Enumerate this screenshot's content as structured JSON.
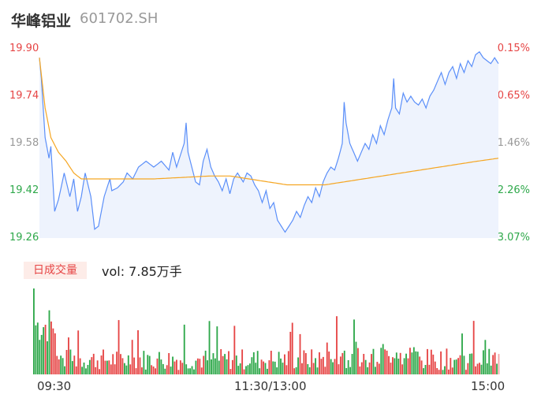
{
  "header": {
    "stock_name": "华峰铝业",
    "stock_code": "601702.SH"
  },
  "volume_panel": {
    "tag_label": "日成交量",
    "vol_label": "vol: 7.85万手"
  },
  "colors": {
    "up": "#e64545",
    "down": "#2ea84a",
    "flat": "#999999",
    "price_line": "#5b8ff9",
    "avg_line": "#f5a623",
    "area_fill": "#eef3fd"
  },
  "chart_data": [
    {
      "type": "line",
      "description_scope": "intraday price",
      "y_ticks": [
        "19.90",
        "19.74",
        "19.58",
        "19.42",
        "19.26"
      ],
      "right_ticks": [
        "0.15%",
        "-0.65%",
        "-1.46%",
        "-2.26%",
        "-3.07%"
      ],
      "ylim": [
        19.26,
        19.9
      ],
      "x_ticks": [
        "09:30",
        "11:30/13:00",
        "15:00"
      ],
      "n_points": 242,
      "price_keypoints": [
        [
          0,
          19.87
        ],
        [
          1,
          19.8
        ],
        [
          3,
          19.6
        ],
        [
          5,
          19.53
        ],
        [
          6,
          19.57
        ],
        [
          8,
          19.35
        ],
        [
          10,
          19.39
        ],
        [
          13,
          19.48
        ],
        [
          16,
          19.4
        ],
        [
          18,
          19.46
        ],
        [
          20,
          19.35
        ],
        [
          22,
          19.4
        ],
        [
          24,
          19.48
        ],
        [
          27,
          19.4
        ],
        [
          29,
          19.29
        ],
        [
          31,
          19.3
        ],
        [
          34,
          19.4
        ],
        [
          37,
          19.46
        ],
        [
          38,
          19.42
        ],
        [
          41,
          19.43
        ],
        [
          44,
          19.45
        ],
        [
          46,
          19.48
        ],
        [
          49,
          19.46
        ],
        [
          52,
          19.5
        ],
        [
          56,
          19.52
        ],
        [
          60,
          19.5
        ],
        [
          64,
          19.52
        ],
        [
          68,
          19.49
        ],
        [
          70,
          19.55
        ],
        [
          72,
          19.5
        ],
        [
          74,
          19.54
        ],
        [
          76,
          19.58
        ],
        [
          77,
          19.65
        ],
        [
          78,
          19.55
        ],
        [
          80,
          19.5
        ],
        [
          82,
          19.45
        ],
        [
          84,
          19.44
        ],
        [
          86,
          19.52
        ],
        [
          88,
          19.56
        ],
        [
          90,
          19.5
        ],
        [
          92,
          19.47
        ],
        [
          94,
          19.45
        ],
        [
          96,
          19.42
        ],
        [
          98,
          19.46
        ],
        [
          100,
          19.41
        ],
        [
          102,
          19.46
        ],
        [
          104,
          19.48
        ],
        [
          107,
          19.45
        ],
        [
          109,
          19.48
        ],
        [
          111,
          19.47
        ],
        [
          113,
          19.44
        ],
        [
          115,
          19.42
        ],
        [
          117,
          19.38
        ],
        [
          119,
          19.42
        ],
        [
          121,
          19.36
        ],
        [
          123,
          19.38
        ],
        [
          125,
          19.32
        ],
        [
          127,
          19.3
        ],
        [
          129,
          19.28
        ],
        [
          131,
          19.3
        ],
        [
          133,
          19.32
        ],
        [
          135,
          19.35
        ],
        [
          137,
          19.33
        ],
        [
          139,
          19.37
        ],
        [
          141,
          19.4
        ],
        [
          143,
          19.38
        ],
        [
          145,
          19.43
        ],
        [
          147,
          19.4
        ],
        [
          149,
          19.45
        ],
        [
          151,
          19.48
        ],
        [
          153,
          19.5
        ],
        [
          155,
          19.49
        ],
        [
          157,
          19.53
        ],
        [
          159,
          19.58
        ],
        [
          160,
          19.72
        ],
        [
          161,
          19.65
        ],
        [
          163,
          19.58
        ],
        [
          165,
          19.55
        ],
        [
          167,
          19.52
        ],
        [
          169,
          19.55
        ],
        [
          171,
          19.58
        ],
        [
          173,
          19.56
        ],
        [
          175,
          19.61
        ],
        [
          177,
          19.58
        ],
        [
          179,
          19.64
        ],
        [
          181,
          19.61
        ],
        [
          183,
          19.66
        ],
        [
          185,
          19.7
        ],
        [
          186,
          19.8
        ],
        [
          187,
          19.7
        ],
        [
          189,
          19.68
        ],
        [
          191,
          19.75
        ],
        [
          193,
          19.72
        ],
        [
          195,
          19.74
        ],
        [
          197,
          19.72
        ],
        [
          199,
          19.71
        ],
        [
          201,
          19.73
        ],
        [
          203,
          19.7
        ],
        [
          205,
          19.74
        ],
        [
          207,
          19.76
        ],
        [
          209,
          19.79
        ],
        [
          211,
          19.82
        ],
        [
          213,
          19.78
        ],
        [
          215,
          19.82
        ],
        [
          217,
          19.84
        ],
        [
          219,
          19.8
        ],
        [
          221,
          19.85
        ],
        [
          223,
          19.82
        ],
        [
          225,
          19.86
        ],
        [
          227,
          19.84
        ],
        [
          229,
          19.88
        ],
        [
          231,
          19.89
        ],
        [
          233,
          19.87
        ],
        [
          235,
          19.86
        ],
        [
          237,
          19.85
        ],
        [
          239,
          19.87
        ],
        [
          241,
          19.85
        ]
      ],
      "avg_keypoints": [
        [
          0,
          19.87
        ],
        [
          3,
          19.7
        ],
        [
          6,
          19.6
        ],
        [
          10,
          19.55
        ],
        [
          14,
          19.52
        ],
        [
          18,
          19.48
        ],
        [
          22,
          19.46
        ],
        [
          30,
          19.46
        ],
        [
          60,
          19.46
        ],
        [
          90,
          19.47
        ],
        [
          100,
          19.47
        ],
        [
          110,
          19.46
        ],
        [
          120,
          19.45
        ],
        [
          130,
          19.44
        ],
        [
          150,
          19.44
        ],
        [
          160,
          19.45
        ],
        [
          170,
          19.46
        ],
        [
          180,
          19.47
        ],
        [
          190,
          19.48
        ],
        [
          200,
          19.49
        ],
        [
          210,
          19.5
        ],
        [
          220,
          19.51
        ],
        [
          230,
          19.52
        ],
        [
          241,
          19.53
        ]
      ]
    },
    {
      "type": "bar",
      "description_scope": "intraday volume",
      "n_bars": 242,
      "note": "relative heights; 1.0 = tallest bar"
    }
  ]
}
